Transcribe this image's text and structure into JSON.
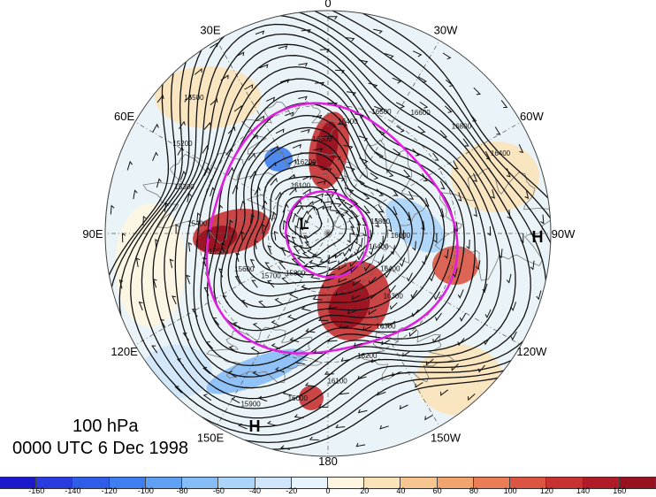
{
  "title": {
    "level": "100 hPa",
    "datetime": "0000 UTC 6 Dec 1998"
  },
  "map": {
    "projection": "north-polar-stereographic",
    "longitude_labels": [
      {
        "text": "0",
        "lon": 0
      },
      {
        "text": "30W",
        "lon": -30
      },
      {
        "text": "60W",
        "lon": -60
      },
      {
        "text": "90W",
        "lon": -90
      },
      {
        "text": "120W",
        "lon": -120
      },
      {
        "text": "150W",
        "lon": -150
      },
      {
        "text": "180",
        "lon": 180
      },
      {
        "text": "150E",
        "lon": 150
      },
      {
        "text": "120E",
        "lon": 120
      },
      {
        "text": "90E",
        "lon": 90
      },
      {
        "text": "60E",
        "lon": 60
      },
      {
        "text": "30E",
        "lon": 30
      }
    ],
    "pressure_centers": [
      {
        "label": "L",
        "type": "low"
      },
      {
        "label": "H",
        "type": "high"
      },
      {
        "label": "H",
        "type": "high"
      }
    ],
    "contour_labels": [
      "16400",
      "16400",
      "16300",
      "16300",
      "16200",
      "16100",
      "16000",
      "15900",
      "15800",
      "15700",
      "15600",
      "15500",
      "15400",
      "15300",
      "15200",
      "15500",
      "16100",
      "16200",
      "16300",
      "16400",
      "16500",
      "16600",
      "16800",
      "16400",
      "15800",
      "16000"
    ],
    "colors": {
      "contour": "#111111",
      "highlight_contour": "#e020e0",
      "coast": "#777777"
    }
  },
  "colorbar": {
    "ticks": [
      "-160",
      "-140",
      "-120",
      "-100",
      "-80",
      "-60",
      "-40",
      "-20",
      "0",
      "20",
      "40",
      "60",
      "80",
      "100",
      "120",
      "140",
      "160"
    ],
    "colors": [
      "#1a1acc",
      "#2a3be0",
      "#2f5de8",
      "#3f7ef0",
      "#5fa0f4",
      "#86bdf6",
      "#aad4f8",
      "#cfe6fa",
      "#e8f4fc",
      "#fdf5e0",
      "#fbe3b9",
      "#f7c690",
      "#f2a46f",
      "#ea7d55",
      "#dc5542",
      "#c83132",
      "#b01b28",
      "#98111f"
    ]
  }
}
